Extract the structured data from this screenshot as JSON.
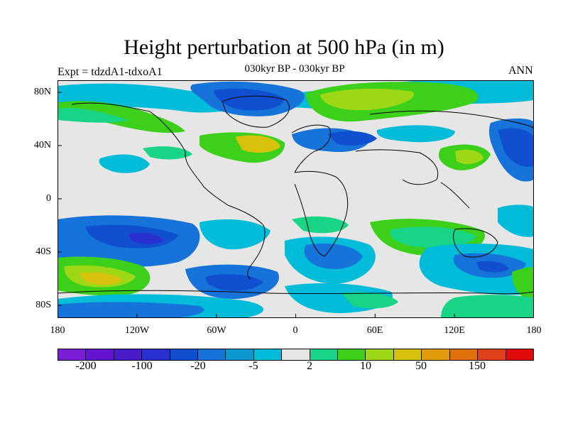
{
  "title": "Height perturbation at 500 hPa (in m)",
  "subtitle": "030kyr BP - 030kyr BP",
  "left_label": "Expt = tdzdA1-tdxoA1",
  "right_label": "ANN",
  "lat_labels": [
    "80N",
    "40N",
    "0",
    "40S",
    "80S"
  ],
  "lon_labels": [
    "180",
    "120W",
    "60W",
    "0",
    "60E",
    "120E",
    "180"
  ],
  "colorbar": {
    "colors": [
      "#7a1fd6",
      "#6414d0",
      "#4a1cc8",
      "#2a30d0",
      "#1050d0",
      "#1673d9",
      "#0b98d0",
      "#00bcd8",
      "#e6e6e6",
      "#17d486",
      "#3cd01a",
      "#9cd815",
      "#d6c20a",
      "#e09a0a",
      "#e0700a",
      "#e0401a",
      "#e00a0a"
    ],
    "labels": [
      "-200",
      "-100",
      "-20",
      "-5",
      "2",
      "10",
      "50",
      "150"
    ]
  }
}
